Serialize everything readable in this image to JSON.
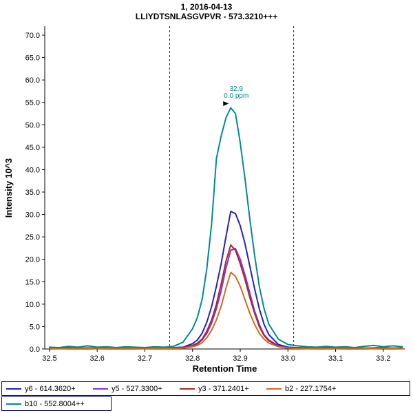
{
  "title": "1, 2016-04-13",
  "subtitle": "LLIYDTSNLASGVPVR - 573.3210+++",
  "chart_data": {
    "type": "line",
    "title": "1, 2016-04-13",
    "subtitle": "LLIYDTSNLASGVPVR - 573.3210+++",
    "xlabel": "Retention Time",
    "ylabel": "Intensity 10^3",
    "xlim": [
      32.49,
      33.245
    ],
    "ylim": [
      0,
      72
    ],
    "x_ticks": [
      32.5,
      32.6,
      32.7,
      32.8,
      32.9,
      33.0,
      33.1,
      33.2
    ],
    "y_ticks": [
      0,
      5,
      10,
      15,
      20,
      25,
      30,
      35,
      40,
      45,
      50,
      55,
      60,
      65,
      70
    ],
    "grid": false,
    "legend_position": "bottom",
    "integration_boundaries": [
      32.752,
      33.012
    ],
    "peak_annotation": {
      "x": 32.883,
      "y": 54.2,
      "lines": [
        "32.9",
        "0.0 ppm"
      ],
      "color": "#008B8B"
    },
    "x": [
      32.5,
      32.52,
      32.54,
      32.56,
      32.58,
      32.6,
      32.62,
      32.64,
      32.66,
      32.68,
      32.7,
      32.72,
      32.74,
      32.76,
      32.78,
      32.8,
      32.81,
      32.82,
      32.83,
      32.84,
      32.85,
      32.86,
      32.87,
      32.88,
      32.89,
      32.9,
      32.91,
      32.92,
      32.93,
      32.94,
      32.95,
      32.96,
      32.98,
      33.0,
      33.02,
      33.04,
      33.06,
      33.08,
      33.1,
      33.12,
      33.14,
      33.16,
      33.18,
      33.2,
      33.22,
      33.24
    ],
    "series": [
      {
        "name": "y6 - 614.3620+",
        "color": "#2020CC",
        "values": [
          0.25,
          0.2,
          0.3,
          0.2,
          0.25,
          0.2,
          0.3,
          0.25,
          0.2,
          0.3,
          0.2,
          0.25,
          0.3,
          0.3,
          0.4,
          1.2,
          2.0,
          3.5,
          6.0,
          9.5,
          14.0,
          19.0,
          25.0,
          30.7,
          30.2,
          27.5,
          23.5,
          18.5,
          13.5,
          9.0,
          5.5,
          3.2,
          1.0,
          0.4,
          0.3,
          0.25,
          0.2,
          0.3,
          0.2,
          0.25,
          0.3,
          0.2,
          0.25,
          0.3,
          0.2,
          0.25
        ]
      },
      {
        "name": "y5 - 527.3300+",
        "color": "#8A2BE2",
        "values": [
          0.2,
          0.15,
          0.2,
          0.25,
          0.2,
          0.15,
          0.2,
          0.2,
          0.25,
          0.2,
          0.15,
          0.2,
          0.2,
          0.25,
          0.3,
          0.7,
          1.1,
          2.0,
          3.5,
          5.8,
          9.0,
          13.0,
          18.0,
          22.0,
          22.4,
          20.0,
          16.5,
          12.5,
          8.5,
          5.5,
          3.2,
          2.0,
          0.7,
          0.3,
          0.2,
          0.2,
          0.15,
          0.2,
          0.25,
          0.2,
          0.15,
          0.2,
          0.2,
          0.15,
          0.2,
          0.2
        ]
      },
      {
        "name": "y3 - 371.2401+",
        "color": "#A52A2A",
        "values": [
          0.15,
          0.2,
          0.15,
          0.2,
          0.15,
          0.2,
          0.2,
          0.15,
          0.2,
          0.15,
          0.2,
          0.15,
          0.2,
          0.2,
          0.3,
          0.8,
          1.3,
          2.2,
          4.0,
          6.5,
          10.0,
          14.5,
          19.5,
          23.2,
          22.0,
          19.0,
          15.5,
          11.5,
          8.0,
          5.0,
          3.0,
          1.8,
          0.6,
          0.25,
          0.2,
          0.15,
          0.2,
          0.15,
          0.2,
          0.15,
          0.2,
          0.15,
          0.2,
          0.2,
          0.15,
          0.2
        ]
      },
      {
        "name": "b2 - 227.1754+",
        "color": "#D2691E",
        "values": [
          0.15,
          0.1,
          0.15,
          0.2,
          0.15,
          0.1,
          0.15,
          0.15,
          0.2,
          0.15,
          0.1,
          0.15,
          0.15,
          0.15,
          0.2,
          0.5,
          0.8,
          1.4,
          2.5,
          4.2,
          6.5,
          9.5,
          13.5,
          17.1,
          16.2,
          14.0,
          11.0,
          8.0,
          5.5,
          3.5,
          2.2,
          1.3,
          0.5,
          0.2,
          0.15,
          0.1,
          0.15,
          0.15,
          0.1,
          0.15,
          0.2,
          0.15,
          0.1,
          0.15,
          0.15,
          0.1
        ]
      },
      {
        "name": "b10 - 552.8004++",
        "color": "#008B8B",
        "values": [
          0.4,
          0.3,
          0.6,
          0.4,
          0.7,
          0.4,
          0.5,
          0.3,
          0.5,
          0.4,
          0.3,
          0.5,
          0.4,
          0.6,
          1.5,
          4.5,
          7.0,
          11.0,
          18.0,
          28.0,
          42.5,
          47.5,
          51.5,
          53.8,
          52.5,
          46.0,
          38.0,
          29.0,
          21.0,
          14.0,
          9.0,
          5.5,
          2.2,
          1.0,
          0.7,
          0.5,
          0.4,
          0.6,
          0.4,
          0.5,
          0.3,
          0.6,
          0.8,
          0.5,
          0.7,
          0.5
        ]
      }
    ]
  }
}
